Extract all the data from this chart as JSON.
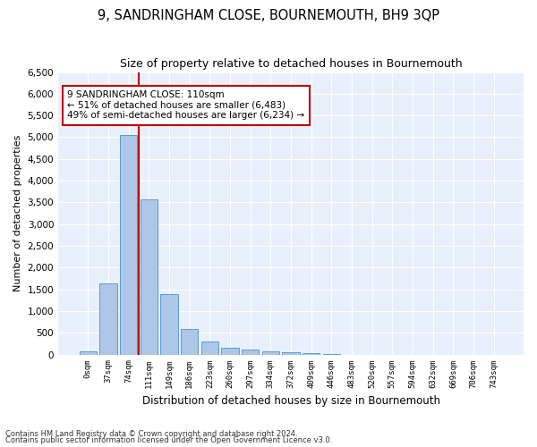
{
  "title": "9, SANDRINGHAM CLOSE, BOURNEMOUTH, BH9 3QP",
  "subtitle": "Size of property relative to detached houses in Bournemouth",
  "xlabel": "Distribution of detached houses by size in Bournemouth",
  "ylabel": "Number of detached properties",
  "bar_labels": [
    "0sqm",
    "37sqm",
    "74sqm",
    "111sqm",
    "149sqm",
    "186sqm",
    "223sqm",
    "260sqm",
    "297sqm",
    "334sqm",
    "372sqm",
    "409sqm",
    "446sqm",
    "483sqm",
    "520sqm",
    "557sqm",
    "594sqm",
    "632sqm",
    "669sqm",
    "706sqm",
    "743sqm"
  ],
  "bar_values": [
    70,
    1630,
    5060,
    3580,
    1390,
    590,
    295,
    150,
    110,
    80,
    45,
    30,
    15,
    0,
    0,
    0,
    0,
    0,
    0,
    0,
    0
  ],
  "bar_color": "#aec6e8",
  "bar_edge_color": "#5b9bd5",
  "bg_color": "#e8f0fb",
  "grid_color": "#ffffff",
  "vline_color": "#c00000",
  "annotation_text": "9 SANDRINGHAM CLOSE: 110sqm\n← 51% of detached houses are smaller (6,483)\n49% of semi-detached houses are larger (6,234) →",
  "annotation_box_color": "#ffffff",
  "annotation_box_edge": "#c00000",
  "ylim": [
    0,
    6500
  ],
  "yticks": [
    0,
    500,
    1000,
    1500,
    2000,
    2500,
    3000,
    3500,
    4000,
    4500,
    5000,
    5500,
    6000,
    6500
  ],
  "footer1": "Contains HM Land Registry data © Crown copyright and database right 2024.",
  "footer2": "Contains public sector information licensed under the Open Government Licence v3.0."
}
